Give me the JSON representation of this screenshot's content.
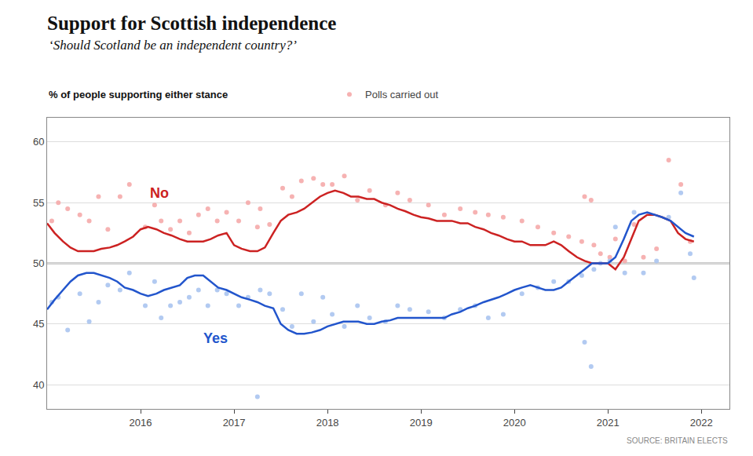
{
  "chart_data": {
    "type": "line",
    "title": "Support for Scottish independence",
    "subtitle": "‘Should Scotland be an independent country?’",
    "ylabel": "% of people supporting either stance",
    "source": "SOURCE: BRITAIN ELECTS",
    "xlim": [
      2015.0,
      2022.3
    ],
    "xticks": [
      2016,
      2017,
      2018,
      2019,
      2020,
      2021,
      2022
    ],
    "ylim": [
      38,
      62
    ],
    "yticks": [
      40,
      45,
      50,
      55,
      60
    ],
    "grid": "y",
    "legend": "top",
    "hline": 50,
    "series": [
      {
        "name": "Polls carried out",
        "type": "scatter",
        "color": "#f5aaaa",
        "x": [
          2015.05,
          2015.12,
          2015.22,
          2015.35,
          2015.45,
          2015.55,
          2015.65,
          2015.78,
          2015.88,
          2016.05,
          2016.15,
          2016.22,
          2016.32,
          2016.42,
          2016.52,
          2016.62,
          2016.72,
          2016.82,
          2016.92,
          2017.05,
          2017.15,
          2017.28,
          2017.38,
          2017.52,
          2017.62,
          2017.72,
          2017.85,
          2017.95,
          2018.05,
          2018.18,
          2018.32,
          2018.45,
          2018.62,
          2018.75,
          2018.88,
          2019.08,
          2019.25,
          2019.42,
          2019.58,
          2019.72,
          2019.88,
          2020.08,
          2020.25,
          2020.42,
          2020.58,
          2020.72,
          2020.85,
          2020.92,
          2021.02,
          2021.08,
          2021.18,
          2021.28,
          2021.38,
          2021.52,
          2021.65,
          2021.78,
          2021.88
        ],
        "values": [
          53.5,
          55.0,
          54.5,
          54.0,
          53.5,
          55.5,
          52.8,
          55.5,
          56.5,
          53.0,
          54.8,
          53.5,
          52.8,
          53.5,
          52.5,
          54.0,
          54.5,
          53.5,
          54.2,
          53.5,
          55.0,
          54.5,
          53.2,
          56.2,
          55.5,
          56.8,
          57.0,
          56.5,
          56.5,
          57.2,
          55.2,
          56.0,
          54.8,
          55.8,
          55.2,
          54.8,
          54.0,
          54.5,
          54.2,
          54.0,
          53.8,
          53.5,
          53.0,
          52.5,
          52.2,
          51.8,
          51.5,
          50.8,
          50.5,
          52.0,
          50.2,
          53.2,
          50.5,
          51.2,
          58.5,
          56.5,
          51.8
        ]
      },
      {
        "type": "scatter",
        "color": "#aac4f0",
        "x": [
          2015.05,
          2015.12,
          2015.22,
          2015.35,
          2015.45,
          2015.55,
          2015.65,
          2015.78,
          2015.88,
          2016.05,
          2016.15,
          2016.22,
          2016.32,
          2016.42,
          2016.52,
          2016.62,
          2016.72,
          2016.82,
          2016.92,
          2017.05,
          2017.15,
          2017.28,
          2017.38,
          2017.52,
          2017.62,
          2017.72,
          2017.85,
          2017.95,
          2018.05,
          2018.18,
          2018.32,
          2018.45,
          2018.62,
          2018.75,
          2018.88,
          2019.08,
          2019.25,
          2019.42,
          2019.58,
          2019.72,
          2019.88,
          2020.08,
          2020.25,
          2020.42,
          2020.58,
          2020.72,
          2020.85,
          2020.92,
          2021.02,
          2021.08,
          2021.18,
          2021.28,
          2021.38,
          2021.52,
          2021.65,
          2021.78,
          2021.88
        ],
        "values": [
          46.8,
          47.2,
          44.5,
          47.5,
          45.2,
          46.8,
          48.2,
          47.8,
          49.2,
          46.5,
          48.5,
          45.5,
          46.5,
          46.8,
          47.2,
          47.8,
          46.5,
          47.8,
          47.5,
          46.5,
          47.2,
          47.8,
          47.5,
          46.2,
          44.8,
          47.5,
          45.2,
          47.2,
          45.8,
          44.8,
          46.5,
          45.5,
          45.2,
          46.5,
          46.2,
          46.0,
          45.5,
          46.2,
          46.5,
          45.5,
          45.8,
          47.5,
          48.0,
          48.5,
          48.5,
          49.0,
          49.5,
          50.0,
          50.2,
          53.0,
          49.2,
          54.2,
          49.2,
          50.2,
          53.8,
          55.8,
          50.8
        ]
      },
      {
        "type": "scatter",
        "color": "#f5aaaa",
        "x": [
          2017.25,
          2020.75,
          2020.82
        ],
        "values": [
          53.0,
          55.5,
          55.2
        ]
      },
      {
        "type": "scatter",
        "color": "#aac4f0",
        "x": [
          2017.25,
          2020.75,
          2020.82,
          2021.92
        ],
        "values": [
          39.0,
          43.5,
          41.5,
          48.8
        ]
      },
      {
        "type": "line",
        "color": "#cc2222",
        "x": [
          2015.0,
          2015.08,
          2015.17,
          2015.25,
          2015.33,
          2015.42,
          2015.5,
          2015.58,
          2015.67,
          2015.75,
          2015.83,
          2015.92,
          2016.0,
          2016.08,
          2016.17,
          2016.25,
          2016.33,
          2016.42,
          2016.5,
          2016.58,
          2016.67,
          2016.75,
          2016.83,
          2016.92,
          2017.0,
          2017.08,
          2017.17,
          2017.25,
          2017.33,
          2017.42,
          2017.5,
          2017.58,
          2017.67,
          2017.75,
          2017.83,
          2017.92,
          2018.0,
          2018.08,
          2018.17,
          2018.25,
          2018.33,
          2018.42,
          2018.5,
          2018.58,
          2018.67,
          2018.75,
          2018.83,
          2018.92,
          2019.0,
          2019.08,
          2019.17,
          2019.25,
          2019.33,
          2019.42,
          2019.5,
          2019.58,
          2019.67,
          2019.75,
          2019.83,
          2019.92,
          2020.0,
          2020.08,
          2020.17,
          2020.25,
          2020.33,
          2020.42,
          2020.5,
          2020.58,
          2020.67,
          2020.75,
          2020.83,
          2020.92,
          2021.0,
          2021.08,
          2021.17,
          2021.25,
          2021.33,
          2021.42,
          2021.5,
          2021.58,
          2021.67,
          2021.75,
          2021.83,
          2021.92
        ],
        "values": [
          53.3,
          52.5,
          51.8,
          51.3,
          51.0,
          51.0,
          51.0,
          51.2,
          51.3,
          51.5,
          51.8,
          52.2,
          52.8,
          53.0,
          52.8,
          52.5,
          52.3,
          52.0,
          51.8,
          51.8,
          51.8,
          52.0,
          52.3,
          52.5,
          51.5,
          51.2,
          51.0,
          51.0,
          51.3,
          52.5,
          53.5,
          54.0,
          54.2,
          54.5,
          55.0,
          55.5,
          55.8,
          56.0,
          55.8,
          55.5,
          55.5,
          55.3,
          55.3,
          55.0,
          54.8,
          54.5,
          54.3,
          54.0,
          53.8,
          53.7,
          53.5,
          53.5,
          53.5,
          53.3,
          53.3,
          53.0,
          52.8,
          52.5,
          52.3,
          52.0,
          51.8,
          51.8,
          51.5,
          51.5,
          51.5,
          51.8,
          51.5,
          51.0,
          50.5,
          50.2,
          50.0,
          50.0,
          50.0,
          49.5,
          50.5,
          52.0,
          53.5,
          54.0,
          54.0,
          53.8,
          53.5,
          52.5,
          52.0,
          51.8
        ]
      },
      {
        "type": "line",
        "color": "#2255cc",
        "x": [
          2015.0,
          2015.08,
          2015.17,
          2015.25,
          2015.33,
          2015.42,
          2015.5,
          2015.58,
          2015.67,
          2015.75,
          2015.83,
          2015.92,
          2016.0,
          2016.08,
          2016.17,
          2016.25,
          2016.33,
          2016.42,
          2016.5,
          2016.58,
          2016.67,
          2016.75,
          2016.83,
          2016.92,
          2017.0,
          2017.08,
          2017.17,
          2017.25,
          2017.33,
          2017.42,
          2017.5,
          2017.58,
          2017.67,
          2017.75,
          2017.83,
          2017.92,
          2018.0,
          2018.08,
          2018.17,
          2018.25,
          2018.33,
          2018.42,
          2018.5,
          2018.58,
          2018.67,
          2018.75,
          2018.83,
          2018.92,
          2019.0,
          2019.08,
          2019.17,
          2019.25,
          2019.33,
          2019.42,
          2019.5,
          2019.58,
          2019.67,
          2019.75,
          2019.83,
          2019.92,
          2020.0,
          2020.08,
          2020.17,
          2020.25,
          2020.33,
          2020.42,
          2020.5,
          2020.58,
          2020.67,
          2020.75,
          2020.83,
          2020.92,
          2021.0,
          2021.08,
          2021.17,
          2021.25,
          2021.33,
          2021.42,
          2021.5,
          2021.58,
          2021.67,
          2021.75,
          2021.83,
          2021.92
        ],
        "values": [
          46.2,
          47.0,
          47.8,
          48.5,
          49.0,
          49.2,
          49.2,
          49.0,
          48.8,
          48.5,
          48.0,
          47.8,
          47.5,
          47.3,
          47.5,
          47.8,
          48.0,
          48.2,
          48.8,
          49.0,
          49.0,
          48.5,
          48.0,
          47.8,
          47.5,
          47.2,
          47.0,
          46.8,
          46.5,
          46.3,
          45.0,
          44.5,
          44.2,
          44.2,
          44.3,
          44.5,
          44.8,
          45.0,
          45.2,
          45.2,
          45.2,
          45.0,
          45.0,
          45.2,
          45.3,
          45.5,
          45.5,
          45.5,
          45.5,
          45.5,
          45.5,
          45.5,
          45.8,
          46.0,
          46.3,
          46.5,
          46.8,
          47.0,
          47.2,
          47.5,
          47.8,
          48.0,
          48.2,
          48.0,
          47.8,
          47.8,
          48.0,
          48.5,
          49.0,
          49.5,
          50.0,
          50.0,
          50.0,
          50.5,
          52.0,
          53.5,
          54.0,
          54.2,
          54.0,
          53.8,
          53.5,
          53.0,
          52.5,
          52.2
        ]
      }
    ],
    "annotations": [
      {
        "text": "No",
        "x": 2016.2,
        "y": 55.8,
        "color": "#cc2222"
      },
      {
        "text": "Yes",
        "x": 2016.8,
        "y": 43.8,
        "color": "#2255cc"
      }
    ]
  }
}
